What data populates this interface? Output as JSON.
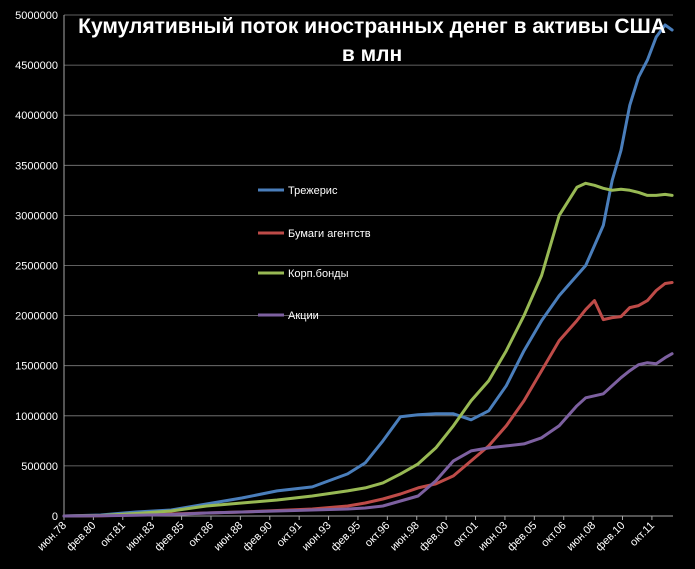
{
  "chart_data": {
    "type": "line",
    "title": "Кумулятивный поток иностранных денег в активы США",
    "subtitle": "в млн",
    "xlabel": "",
    "ylabel": "",
    "ylim": [
      0,
      5000000
    ],
    "yticks": [
      0,
      500000,
      1000000,
      1500000,
      2000000,
      2500000,
      3000000,
      3500000,
      4000000,
      4500000,
      5000000
    ],
    "ytick_labels": [
      "0",
      "500000",
      "1000000",
      "1500000",
      "2000000",
      "2500000",
      "3000000",
      "3500000",
      "4000000",
      "4500000",
      "5000000"
    ],
    "x_tick_labels": [
      "июн.78",
      "фев.80",
      "окт.81",
      "июн.83",
      "фев.85",
      "окт.86",
      "июн.88",
      "фев.90",
      "окт.91",
      "июн.93",
      "фев.95",
      "окт.96",
      "июн.98",
      "фев.00",
      "окт.01",
      "июн.03",
      "фев.05",
      "окт.06",
      "июн.08",
      "фев.10",
      "окт.11"
    ],
    "x": [
      1978.42,
      1980.5,
      1982.5,
      1984.5,
      1986.5,
      1988.5,
      1990.5,
      1992.5,
      1994.5,
      1995.5,
      1996.5,
      1997.5,
      1998.5,
      1999.5,
      2000.5,
      2001.5,
      2002.5,
      2003.5,
      2004.5,
      2005.5,
      2006.5,
      2007.5,
      2008.0,
      2008.5,
      2009.0,
      2009.5,
      2010.0,
      2010.5,
      2011.0,
      2011.5,
      2012.0,
      2012.5,
      2012.9
    ],
    "grid": true,
    "legend_position": "center-left",
    "series": [
      {
        "name": "Трежерис",
        "color": "#4a7ebb",
        "values": [
          0,
          10000,
          40000,
          60000,
          120000,
          180000,
          250000,
          290000,
          420000,
          530000,
          750000,
          990000,
          1010000,
          1020000,
          1020000,
          960000,
          1050000,
          1300000,
          1650000,
          1950000,
          2200000,
          2400000,
          2500000,
          2700000,
          2900000,
          3350000,
          3650000,
          4100000,
          4380000,
          4550000,
          4780000,
          4900000,
          4850000
        ]
      },
      {
        "name": "Бумаги агентств",
        "color": "#be4b48",
        "values": [
          0,
          3000,
          10000,
          20000,
          30000,
          40000,
          55000,
          70000,
          100000,
          130000,
          170000,
          220000,
          280000,
          320000,
          400000,
          550000,
          700000,
          900000,
          1150000,
          1450000,
          1750000,
          1950000,
          2060000,
          2150000,
          1960000,
          1980000,
          1990000,
          2080000,
          2100000,
          2150000,
          2250000,
          2320000,
          2330000
        ]
      },
      {
        "name": "Корп.бонды",
        "color": "#98b954",
        "values": [
          0,
          5000,
          25000,
          50000,
          100000,
          130000,
          160000,
          200000,
          250000,
          280000,
          330000,
          420000,
          520000,
          680000,
          900000,
          1150000,
          1350000,
          1650000,
          2000000,
          2400000,
          3000000,
          3280000,
          3320000,
          3300000,
          3270000,
          3250000,
          3260000,
          3250000,
          3230000,
          3200000,
          3200000,
          3210000,
          3200000
        ]
      },
      {
        "name": "Акции",
        "color": "#7d60a0",
        "values": [
          0,
          3000,
          8000,
          15000,
          30000,
          40000,
          50000,
          60000,
          70000,
          80000,
          100000,
          150000,
          200000,
          350000,
          550000,
          650000,
          680000,
          700000,
          720000,
          780000,
          900000,
          1100000,
          1180000,
          1200000,
          1220000,
          1300000,
          1380000,
          1450000,
          1510000,
          1530000,
          1520000,
          1580000,
          1620000
        ]
      }
    ]
  }
}
